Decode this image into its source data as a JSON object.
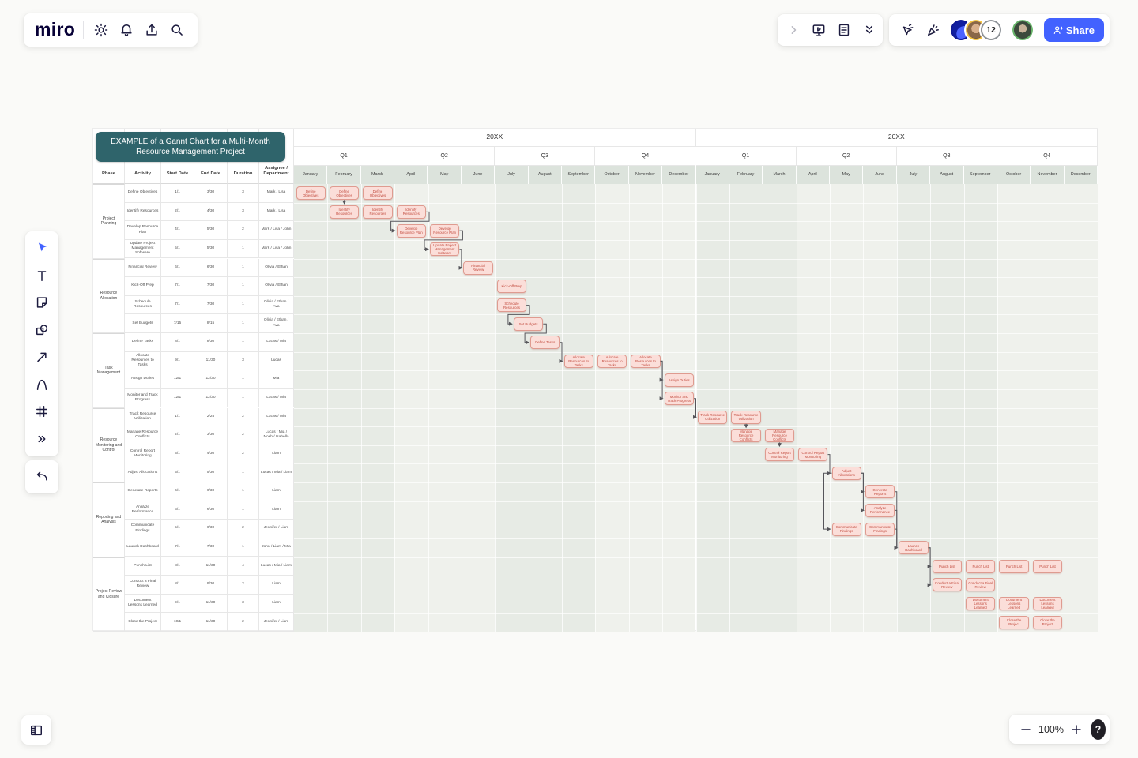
{
  "header": {
    "logo": "miro",
    "left_icons": [
      "settings",
      "notifications",
      "upload",
      "search"
    ],
    "panel1_icons": [
      "expand",
      "present",
      "notes",
      "collapse"
    ],
    "panel2_icons": [
      "follow",
      "reactions"
    ],
    "collaborator_count": "12",
    "share_icon_list": [
      "person-plus"
    ],
    "share_label": "Share",
    "brand_blue": "#4262ff"
  },
  "left_toolbar": {
    "tools": [
      "select",
      "text",
      "sticky-note",
      "shapes",
      "connector",
      "pen",
      "frame",
      "more"
    ],
    "history": [
      "undo"
    ]
  },
  "bottom_left": {
    "icons": [
      "panel-toggle"
    ]
  },
  "zoom_bar": {
    "zoom_out": [
      "minus"
    ],
    "zoom_level": "100%",
    "zoom_in": [
      "plus"
    ],
    "help_label": "?"
  },
  "gantt": {
    "title": "EXAMPLE of a Gannt Chart for a Multi-Month Resource Management Project",
    "title_color": "#2f646b",
    "bar_color": "#fbded9",
    "bar_border_color": "#df9b90",
    "columns": [
      "Phase",
      "Activity",
      "Start Date",
      "End Date",
      "Duration",
      "Assignee / Department"
    ],
    "years": [
      {
        "label": "20XX"
      },
      {
        "label": "20XX"
      }
    ],
    "quarters": [
      "Q1",
      "Q2",
      "Q3",
      "Q4"
    ],
    "months": [
      "January",
      "February",
      "March",
      "April",
      "May",
      "June",
      "July",
      "August",
      "September",
      "October",
      "November",
      "December"
    ],
    "phases": [
      {
        "name": "Project Planning",
        "tasks": [
          {
            "activity": "Define Objectives",
            "start": "1/1",
            "end": "3/30",
            "duration": "3",
            "assignee": "Mark / Lisa",
            "bars": [
              0,
              1,
              2
            ]
          },
          {
            "activity": "Identify Resources",
            "start": "2/1",
            "end": "4/30",
            "duration": "3",
            "assignee": "Mark / Lisa",
            "bars": [
              1,
              2,
              3
            ]
          },
          {
            "activity": "Develop Resource Plan",
            "start": "4/1",
            "end": "5/30",
            "duration": "2",
            "assignee": "Mark / Lisa / John",
            "bars": [
              3,
              4
            ]
          },
          {
            "activity": "Update Project Management Software",
            "start": "5/1",
            "end": "5/30",
            "duration": "1",
            "assignee": "Mark / Lisa / John",
            "bars": [
              4
            ]
          }
        ]
      },
      {
        "name": "Resource Allocation",
        "tasks": [
          {
            "activity": "Financial Review",
            "start": "6/1",
            "end": "6/30",
            "duration": "1",
            "assignee": "Olivia / Ethan",
            "bars": [
              5
            ]
          },
          {
            "activity": "Kick-Off Prep",
            "start": "7/1",
            "end": "7/30",
            "duration": "1",
            "assignee": "Olivia / Ethan",
            "bars": [
              6
            ]
          },
          {
            "activity": "Schedule Resources",
            "start": "7/1",
            "end": "7/30",
            "duration": "1",
            "assignee": "Olivia / Ethan / Ava",
            "bars": [
              6
            ]
          },
          {
            "activity": "Set Budgets",
            "start": "7/15",
            "end": "8/15",
            "duration": "1",
            "assignee": "Olivia / Ethan / Ava",
            "bars": [
              6.5
            ]
          }
        ]
      },
      {
        "name": "Task Management",
        "tasks": [
          {
            "activity": "Define Tasks",
            "start": "8/1",
            "end": "8/30",
            "duration": "1",
            "assignee": "Lucas / Mia",
            "bars": [
              7
            ]
          },
          {
            "activity": "Allocate Resources to Tasks",
            "start": "9/1",
            "end": "11/30",
            "duration": "3",
            "assignee": "Lucas",
            "bars": [
              8,
              9,
              10
            ]
          },
          {
            "activity": "Assign Duties",
            "start": "12/1",
            "end": "12/30",
            "duration": "1",
            "assignee": "Mia",
            "bars": [
              11
            ]
          },
          {
            "activity": "Monitor and Track Progress",
            "start": "12/1",
            "end": "12/30",
            "duration": "1",
            "assignee": "Lucas / Mia",
            "bars": [
              11
            ]
          }
        ]
      },
      {
        "name": "Resource Monitoring and Control",
        "tasks": [
          {
            "activity": "Track Resource Utilization",
            "start": "1/1",
            "end": "2/25",
            "duration": "2",
            "assignee": "Lucas / Mia",
            "bars": [
              12,
              13
            ]
          },
          {
            "activity": "Manage Resource Conflicts",
            "start": "2/1",
            "end": "3/30",
            "duration": "2",
            "assignee": "Lucas / Mia / Noah / Isabella",
            "bars": [
              13,
              14
            ]
          },
          {
            "activity": "Control Report Monitoring",
            "start": "3/1",
            "end": "4/30",
            "duration": "2",
            "assignee": "Liam",
            "bars": [
              14,
              15
            ]
          },
          {
            "activity": "Adjust Allocations",
            "start": "5/1",
            "end": "5/30",
            "duration": "1",
            "assignee": "Lucas / Mia / Liam",
            "bars": [
              16
            ]
          }
        ]
      },
      {
        "name": "Reporting and Analysis",
        "tasks": [
          {
            "activity": "Generate Reports",
            "start": "6/1",
            "end": "6/30",
            "duration": "1",
            "assignee": "Liam",
            "bars": [
              17
            ]
          },
          {
            "activity": "Analyze Performance",
            "start": "6/1",
            "end": "6/30",
            "duration": "1",
            "assignee": "Liam",
            "bars": [
              17
            ]
          },
          {
            "activity": "Communicate Findings",
            "start": "5/1",
            "end": "6/30",
            "duration": "2",
            "assignee": "Jennifer / Liam",
            "bars": [
              16,
              17
            ]
          },
          {
            "activity": "Launch Dashboard",
            "start": "7/1",
            "end": "7/30",
            "duration": "1",
            "assignee": "John / Liam / Mia",
            "bars": [
              18
            ]
          }
        ]
      },
      {
        "name": "Project Review and Closure",
        "tasks": [
          {
            "activity": "Punch List",
            "start": "8/1",
            "end": "11/30",
            "duration": "4",
            "assignee": "Lucas / Mia / Liam",
            "bars": [
              19,
              20,
              21,
              22
            ]
          },
          {
            "activity": "Conduct a Final Review",
            "start": "8/1",
            "end": "9/30",
            "duration": "2",
            "assignee": "Liam",
            "bars": [
              19,
              20
            ]
          },
          {
            "activity": "Document Lessons Learned",
            "start": "9/1",
            "end": "11/30",
            "duration": "3",
            "assignee": "Liam",
            "bars": [
              20,
              21,
              22
            ]
          },
          {
            "activity": "Close the Project",
            "start": "10/1",
            "end": "11/30",
            "duration": "2",
            "assignee": "Jennifer / Liam",
            "bars": [
              21,
              22
            ]
          }
        ]
      }
    ],
    "connectors": [
      {
        "from": [
          0,
          1
        ],
        "to": [
          1,
          1
        ],
        "type": "v"
      },
      {
        "from": [
          1,
          3
        ],
        "to": [
          2,
          3
        ],
        "type": "e"
      },
      {
        "from": [
          2,
          4
        ],
        "to": [
          3,
          4
        ],
        "type": "e"
      },
      {
        "from": [
          3,
          4
        ],
        "to": [
          4,
          5
        ],
        "type": "e"
      },
      {
        "from": [
          6,
          6
        ],
        "to": [
          7,
          6.5
        ],
        "type": "e"
      },
      {
        "from": [
          7,
          6.5
        ],
        "to": [
          8,
          7
        ],
        "type": "e"
      },
      {
        "from": [
          8,
          7
        ],
        "to": [
          9,
          8
        ],
        "type": "e"
      },
      {
        "from": [
          9,
          10
        ],
        "to": [
          10,
          11
        ],
        "type": "e"
      },
      {
        "from": [
          9,
          10
        ],
        "to": [
          11,
          11
        ],
        "type": "e"
      },
      {
        "from": [
          11,
          11
        ],
        "to": [
          12,
          12
        ],
        "type": "e"
      },
      {
        "from": [
          12,
          13
        ],
        "to": [
          13,
          13
        ],
        "type": "v"
      },
      {
        "from": [
          13,
          14
        ],
        "to": [
          14,
          14
        ],
        "type": "v"
      },
      {
        "from": [
          14,
          15
        ],
        "to": [
          15,
          16
        ],
        "type": "e"
      },
      {
        "from": [
          15,
          16
        ],
        "to": [
          16,
          17
        ],
        "type": "e"
      },
      {
        "from": [
          15,
          16
        ],
        "to": [
          17,
          17
        ],
        "type": "e"
      },
      {
        "from": [
          15,
          16
        ],
        "to": [
          18,
          16
        ],
        "type": "l"
      },
      {
        "from": [
          16,
          17
        ],
        "to": [
          19,
          18
        ],
        "type": "e"
      },
      {
        "from": [
          17,
          17
        ],
        "to": [
          19,
          18
        ],
        "type": "e"
      },
      {
        "from": [
          18,
          17
        ],
        "to": [
          19,
          18
        ],
        "type": "e"
      },
      {
        "from": [
          19,
          18
        ],
        "to": [
          20,
          19
        ],
        "type": "e"
      },
      {
        "from": [
          19,
          18
        ],
        "to": [
          21,
          19
        ],
        "type": "e"
      }
    ]
  }
}
